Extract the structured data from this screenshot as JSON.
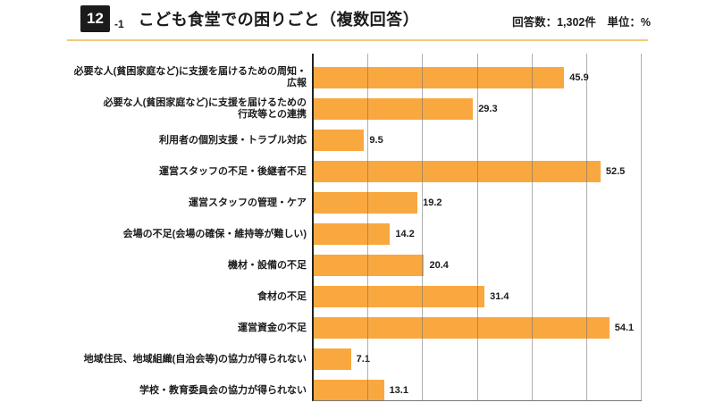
{
  "header": {
    "badge_number": "12",
    "badge_suffix": "-1",
    "title": "こども食堂での困りごと（複数回答）",
    "meta": "回答数：1,302件　単位：%"
  },
  "chart_data": {
    "type": "bar",
    "orientation": "horizontal",
    "title": "こども食堂での困りごと（複数回答）",
    "unit": "%",
    "response_count": "1,302件",
    "categories": [
      "必要な人(貧困家庭など)に支援を届けるための周知・広報",
      "必要な人(貧困家庭など)に支援を届けるための\n行政等との連携",
      "利用者の個別支援・トラブル対応",
      "運営スタッフの不足・後継者不足",
      "運営スタッフの管理・ケア",
      "会場の不足(会場の確保・維持等が難しい)",
      "機材・設備の不足",
      "食材の不足",
      "運営資金の不足",
      "地域住民、地域組織(自治会等)の協力が得られない",
      "学校・教育委員会の協力が得られない"
    ],
    "values": [
      45.9,
      29.3,
      9.5,
      52.5,
      19.2,
      14.2,
      20.4,
      31.4,
      54.1,
      7.1,
      13.1
    ],
    "xlim": [
      0,
      60
    ],
    "gridline_interval": 10,
    "grid": true,
    "legend": false,
    "value_labels": true
  },
  "colors": {
    "bar": "#F9A840",
    "gridline": "#6E6E6E",
    "axis": "#222222",
    "header_rule": "#F0C97E",
    "badge_bg": "#1B1B1B",
    "badge_text": "#FFFFFF",
    "text": "#1B1B1B"
  }
}
